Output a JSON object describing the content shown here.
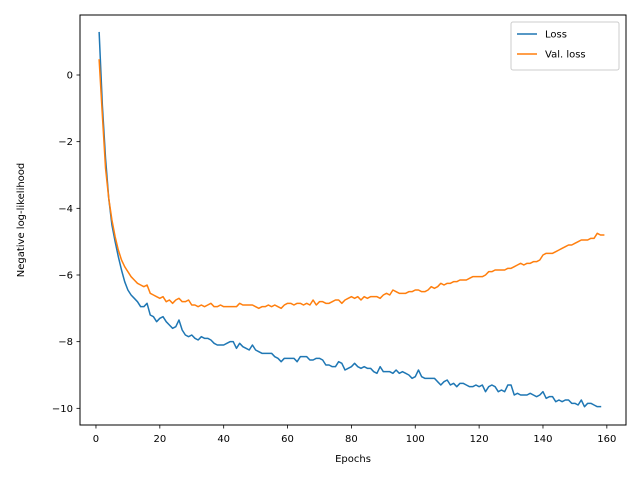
{
  "chart_data": {
    "type": "line",
    "title": "",
    "xlabel": "Epochs",
    "ylabel": "Negative log-likelihood",
    "xlim": [
      -5,
      166
    ],
    "ylim": [
      -10.5,
      1.8
    ],
    "xticks": [
      0,
      20,
      40,
      60,
      80,
      100,
      120,
      140,
      160
    ],
    "yticks": [
      -10,
      -8,
      -6,
      -4,
      -2,
      0
    ],
    "ytick_labels": [
      "−10",
      "−8",
      "−6",
      "−4",
      "−2",
      "0"
    ],
    "grid": false,
    "legend": "top-right",
    "series": [
      {
        "name": "Loss",
        "color": "#1f77b4",
        "points": [
          [
            1,
            1.27
          ],
          [
            2,
            -0.9
          ],
          [
            3,
            -2.5
          ],
          [
            4,
            -3.7
          ],
          [
            5,
            -4.5
          ],
          [
            6,
            -5.0
          ],
          [
            7,
            -5.45
          ],
          [
            8,
            -5.85
          ],
          [
            9,
            -6.2
          ],
          [
            10,
            -6.45
          ],
          [
            11,
            -6.6
          ],
          [
            12,
            -6.7
          ],
          [
            13,
            -6.8
          ],
          [
            14,
            -6.95
          ],
          [
            15,
            -6.95
          ],
          [
            16,
            -6.85
          ],
          [
            17,
            -7.2
          ],
          [
            18,
            -7.25
          ],
          [
            19,
            -7.4
          ],
          [
            20,
            -7.3
          ],
          [
            21,
            -7.25
          ],
          [
            22,
            -7.4
          ],
          [
            23,
            -7.5
          ],
          [
            24,
            -7.6
          ],
          [
            25,
            -7.55
          ],
          [
            26,
            -7.35
          ],
          [
            27,
            -7.65
          ],
          [
            28,
            -7.8
          ],
          [
            29,
            -7.85
          ],
          [
            30,
            -7.8
          ],
          [
            31,
            -7.9
          ],
          [
            32,
            -7.95
          ],
          [
            33,
            -7.85
          ],
          [
            34,
            -7.9
          ],
          [
            35,
            -7.9
          ],
          [
            36,
            -7.95
          ],
          [
            37,
            -8.05
          ],
          [
            38,
            -8.1
          ],
          [
            39,
            -8.1
          ],
          [
            40,
            -8.1
          ],
          [
            41,
            -8.05
          ],
          [
            42,
            -8.0
          ],
          [
            43,
            -8.0
          ],
          [
            44,
            -8.2
          ],
          [
            45,
            -8.05
          ],
          [
            46,
            -8.15
          ],
          [
            47,
            -8.2
          ],
          [
            48,
            -8.25
          ],
          [
            49,
            -8.1
          ],
          [
            50,
            -8.25
          ],
          [
            51,
            -8.3
          ],
          [
            52,
            -8.35
          ],
          [
            53,
            -8.35
          ],
          [
            54,
            -8.35
          ],
          [
            55,
            -8.35
          ],
          [
            56,
            -8.45
          ],
          [
            57,
            -8.5
          ],
          [
            58,
            -8.6
          ],
          [
            59,
            -8.5
          ],
          [
            60,
            -8.5
          ],
          [
            61,
            -8.5
          ],
          [
            62,
            -8.5
          ],
          [
            63,
            -8.6
          ],
          [
            64,
            -8.45
          ],
          [
            65,
            -8.45
          ],
          [
            66,
            -8.45
          ],
          [
            67,
            -8.55
          ],
          [
            68,
            -8.55
          ],
          [
            69,
            -8.5
          ],
          [
            70,
            -8.5
          ],
          [
            71,
            -8.55
          ],
          [
            72,
            -8.7
          ],
          [
            73,
            -8.7
          ],
          [
            74,
            -8.75
          ],
          [
            75,
            -8.75
          ],
          [
            76,
            -8.6
          ],
          [
            77,
            -8.65
          ],
          [
            78,
            -8.85
          ],
          [
            79,
            -8.8
          ],
          [
            80,
            -8.75
          ],
          [
            81,
            -8.65
          ],
          [
            82,
            -8.75
          ],
          [
            83,
            -8.8
          ],
          [
            84,
            -8.75
          ],
          [
            85,
            -8.8
          ],
          [
            86,
            -8.8
          ],
          [
            87,
            -8.9
          ],
          [
            88,
            -8.95
          ],
          [
            89,
            -8.75
          ],
          [
            90,
            -8.9
          ],
          [
            91,
            -8.9
          ],
          [
            92,
            -8.9
          ],
          [
            93,
            -8.95
          ],
          [
            94,
            -8.85
          ],
          [
            95,
            -8.95
          ],
          [
            96,
            -8.9
          ],
          [
            97,
            -8.95
          ],
          [
            98,
            -9.0
          ],
          [
            99,
            -9.1
          ],
          [
            100,
            -9.05
          ],
          [
            101,
            -8.85
          ],
          [
            102,
            -9.05
          ],
          [
            103,
            -9.1
          ],
          [
            104,
            -9.1
          ],
          [
            105,
            -9.1
          ],
          [
            106,
            -9.1
          ],
          [
            107,
            -9.2
          ],
          [
            108,
            -9.3
          ],
          [
            109,
            -9.2
          ],
          [
            110,
            -9.15
          ],
          [
            111,
            -9.3
          ],
          [
            112,
            -9.25
          ],
          [
            113,
            -9.35
          ],
          [
            114,
            -9.25
          ],
          [
            115,
            -9.25
          ],
          [
            116,
            -9.3
          ],
          [
            117,
            -9.35
          ],
          [
            118,
            -9.35
          ],
          [
            119,
            -9.3
          ],
          [
            120,
            -9.35
          ],
          [
            121,
            -9.3
          ],
          [
            122,
            -9.5
          ],
          [
            123,
            -9.35
          ],
          [
            124,
            -9.3
          ],
          [
            125,
            -9.35
          ],
          [
            126,
            -9.5
          ],
          [
            127,
            -9.45
          ],
          [
            128,
            -9.5
          ],
          [
            129,
            -9.3
          ],
          [
            130,
            -9.3
          ],
          [
            131,
            -9.6
          ],
          [
            132,
            -9.55
          ],
          [
            133,
            -9.6
          ],
          [
            134,
            -9.6
          ],
          [
            135,
            -9.6
          ],
          [
            136,
            -9.55
          ],
          [
            137,
            -9.6
          ],
          [
            138,
            -9.65
          ],
          [
            139,
            -9.6
          ],
          [
            140,
            -9.5
          ],
          [
            141,
            -9.7
          ],
          [
            142,
            -9.65
          ],
          [
            143,
            -9.65
          ],
          [
            144,
            -9.8
          ],
          [
            145,
            -9.75
          ],
          [
            146,
            -9.8
          ],
          [
            147,
            -9.75
          ],
          [
            148,
            -9.75
          ],
          [
            149,
            -9.85
          ],
          [
            150,
            -9.85
          ],
          [
            151,
            -9.9
          ],
          [
            152,
            -9.75
          ],
          [
            153,
            -9.95
          ],
          [
            154,
            -9.85
          ],
          [
            155,
            -9.85
          ],
          [
            156,
            -9.9
          ],
          [
            157,
            -9.95
          ],
          [
            158,
            -9.95
          ]
        ]
      },
      {
        "name": "Val. loss",
        "color": "#ff7f0e",
        "points": [
          [
            1,
            0.45
          ],
          [
            2,
            -1.2
          ],
          [
            3,
            -2.8
          ],
          [
            4,
            -3.7
          ],
          [
            5,
            -4.35
          ],
          [
            6,
            -4.85
          ],
          [
            7,
            -5.25
          ],
          [
            8,
            -5.55
          ],
          [
            9,
            -5.75
          ],
          [
            10,
            -5.9
          ],
          [
            11,
            -6.05
          ],
          [
            12,
            -6.15
          ],
          [
            13,
            -6.25
          ],
          [
            14,
            -6.3
          ],
          [
            15,
            -6.35
          ],
          [
            16,
            -6.3
          ],
          [
            17,
            -6.55
          ],
          [
            18,
            -6.6
          ],
          [
            19,
            -6.65
          ],
          [
            20,
            -6.7
          ],
          [
            21,
            -6.65
          ],
          [
            22,
            -6.8
          ],
          [
            23,
            -6.75
          ],
          [
            24,
            -6.85
          ],
          [
            25,
            -6.75
          ],
          [
            26,
            -6.7
          ],
          [
            27,
            -6.8
          ],
          [
            28,
            -6.8
          ],
          [
            29,
            -6.75
          ],
          [
            30,
            -6.9
          ],
          [
            31,
            -6.9
          ],
          [
            32,
            -6.95
          ],
          [
            33,
            -6.9
          ],
          [
            34,
            -6.95
          ],
          [
            35,
            -6.9
          ],
          [
            36,
            -6.85
          ],
          [
            37,
            -6.95
          ],
          [
            38,
            -6.95
          ],
          [
            39,
            -6.9
          ],
          [
            40,
            -6.95
          ],
          [
            41,
            -6.95
          ],
          [
            42,
            -6.95
          ],
          [
            43,
            -6.95
          ],
          [
            44,
            -6.95
          ],
          [
            45,
            -6.85
          ],
          [
            46,
            -6.9
          ],
          [
            47,
            -6.9
          ],
          [
            48,
            -6.9
          ],
          [
            49,
            -6.9
          ],
          [
            50,
            -6.95
          ],
          [
            51,
            -7.0
          ],
          [
            52,
            -6.95
          ],
          [
            53,
            -6.95
          ],
          [
            54,
            -6.9
          ],
          [
            55,
            -6.95
          ],
          [
            56,
            -6.9
          ],
          [
            57,
            -6.95
          ],
          [
            58,
            -7.0
          ],
          [
            59,
            -6.9
          ],
          [
            60,
            -6.85
          ],
          [
            61,
            -6.85
          ],
          [
            62,
            -6.9
          ],
          [
            63,
            -6.85
          ],
          [
            64,
            -6.85
          ],
          [
            65,
            -6.9
          ],
          [
            66,
            -6.85
          ],
          [
            67,
            -6.9
          ],
          [
            68,
            -6.75
          ],
          [
            69,
            -6.9
          ],
          [
            70,
            -6.8
          ],
          [
            71,
            -6.8
          ],
          [
            72,
            -6.85
          ],
          [
            73,
            -6.85
          ],
          [
            74,
            -6.8
          ],
          [
            75,
            -6.75
          ],
          [
            76,
            -6.75
          ],
          [
            77,
            -6.85
          ],
          [
            78,
            -6.75
          ],
          [
            79,
            -6.7
          ],
          [
            80,
            -6.65
          ],
          [
            81,
            -6.7
          ],
          [
            82,
            -6.65
          ],
          [
            83,
            -6.75
          ],
          [
            84,
            -6.65
          ],
          [
            85,
            -6.7
          ],
          [
            86,
            -6.65
          ],
          [
            87,
            -6.65
          ],
          [
            88,
            -6.65
          ],
          [
            89,
            -6.7
          ],
          [
            90,
            -6.6
          ],
          [
            91,
            -6.55
          ],
          [
            92,
            -6.6
          ],
          [
            93,
            -6.45
          ],
          [
            94,
            -6.5
          ],
          [
            95,
            -6.55
          ],
          [
            96,
            -6.55
          ],
          [
            97,
            -6.55
          ],
          [
            98,
            -6.5
          ],
          [
            99,
            -6.5
          ],
          [
            100,
            -6.45
          ],
          [
            101,
            -6.45
          ],
          [
            102,
            -6.5
          ],
          [
            103,
            -6.5
          ],
          [
            104,
            -6.45
          ],
          [
            105,
            -6.35
          ],
          [
            106,
            -6.4
          ],
          [
            107,
            -6.35
          ],
          [
            108,
            -6.25
          ],
          [
            109,
            -6.3
          ],
          [
            110,
            -6.25
          ],
          [
            111,
            -6.25
          ],
          [
            112,
            -6.2
          ],
          [
            113,
            -6.2
          ],
          [
            114,
            -6.15
          ],
          [
            115,
            -6.15
          ],
          [
            116,
            -6.15
          ],
          [
            117,
            -6.1
          ],
          [
            118,
            -6.05
          ],
          [
            119,
            -6.05
          ],
          [
            120,
            -6.05
          ],
          [
            121,
            -6.05
          ],
          [
            122,
            -6.0
          ],
          [
            123,
            -5.9
          ],
          [
            124,
            -5.9
          ],
          [
            125,
            -5.85
          ],
          [
            126,
            -5.85
          ],
          [
            127,
            -5.85
          ],
          [
            128,
            -5.85
          ],
          [
            129,
            -5.8
          ],
          [
            130,
            -5.8
          ],
          [
            131,
            -5.75
          ],
          [
            132,
            -5.7
          ],
          [
            133,
            -5.65
          ],
          [
            134,
            -5.7
          ],
          [
            135,
            -5.65
          ],
          [
            136,
            -5.65
          ],
          [
            137,
            -5.6
          ],
          [
            138,
            -5.6
          ],
          [
            139,
            -5.55
          ],
          [
            140,
            -5.4
          ],
          [
            141,
            -5.35
          ],
          [
            142,
            -5.35
          ],
          [
            143,
            -5.35
          ],
          [
            144,
            -5.3
          ],
          [
            145,
            -5.25
          ],
          [
            146,
            -5.2
          ],
          [
            147,
            -5.15
          ],
          [
            148,
            -5.1
          ],
          [
            149,
            -5.1
          ],
          [
            150,
            -5.05
          ],
          [
            151,
            -5.0
          ],
          [
            152,
            -4.95
          ],
          [
            153,
            -4.95
          ],
          [
            154,
            -4.95
          ],
          [
            155,
            -4.9
          ],
          [
            156,
            -4.9
          ],
          [
            157,
            -4.75
          ],
          [
            158,
            -4.8
          ],
          [
            159,
            -4.8
          ]
        ]
      }
    ]
  }
}
